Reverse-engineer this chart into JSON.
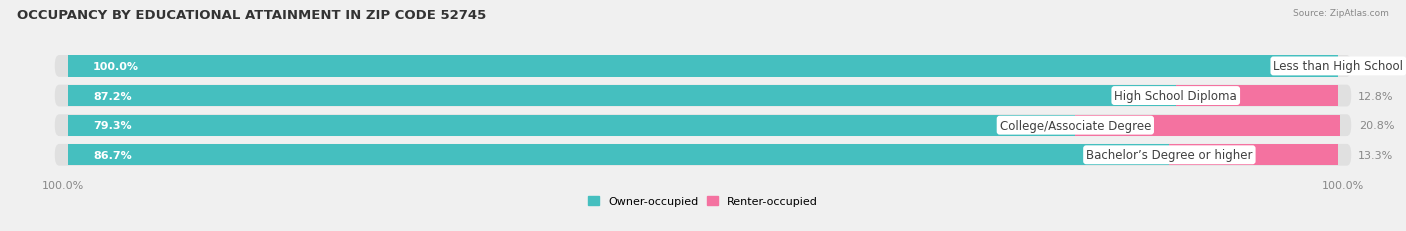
{
  "title": "OCCUPANCY BY EDUCATIONAL ATTAINMENT IN ZIP CODE 52745",
  "source": "Source: ZipAtlas.com",
  "categories": [
    "Less than High School",
    "High School Diploma",
    "College/Associate Degree",
    "Bachelor’s Degree or higher"
  ],
  "owner_pct": [
    100.0,
    87.2,
    79.3,
    86.7
  ],
  "renter_pct": [
    0.0,
    12.8,
    20.8,
    13.3
  ],
  "owner_color": "#45BFBF",
  "renter_color": "#F472A0",
  "bar_bg_color": "#E0E0E0",
  "row_bg_color": "#EBEBEB",
  "owner_label": "Owner-occupied",
  "renter_label": "Renter-occupied",
  "axis_left_label": "100.0%",
  "axis_right_label": "100.0%",
  "title_fontsize": 9.5,
  "label_fontsize": 8.0,
  "cat_fontsize": 8.5,
  "bar_height": 0.72,
  "figsize": [
    14.06,
    2.32
  ],
  "dpi": 100,
  "background_color": "#F0F0F0"
}
